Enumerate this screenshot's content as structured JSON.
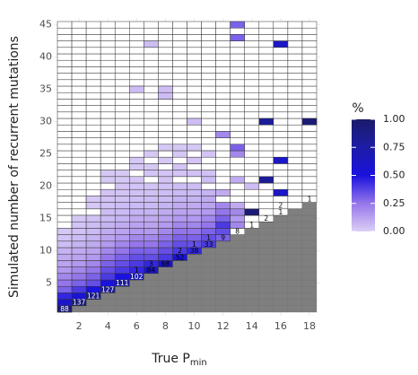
{
  "chart_data": {
    "type": "heatmap",
    "xlabel": "True P",
    "xlabel_sub": "min",
    "ylabel": "Simulated number of recurrent mutations",
    "legend_title": "%",
    "xlim": [
      0.5,
      18.5
    ],
    "ylim": [
      0.5,
      45.5
    ],
    "xticks": [
      2,
      4,
      6,
      8,
      10,
      12,
      14,
      16,
      18
    ],
    "yticks": [
      5,
      10,
      15,
      20,
      25,
      30,
      35,
      40,
      45
    ],
    "clim": [
      0,
      1
    ],
    "cticks": [
      {
        "value": 0,
        "label": "0.00"
      },
      {
        "value": 0.25,
        "label": "0.25"
      },
      {
        "value": 0.5,
        "label": "0.50"
      },
      {
        "value": 0.75,
        "label": "0.75"
      },
      {
        "value": 1,
        "label": "1.00"
      }
    ],
    "colorscale": [
      [
        0,
        "#dccff6"
      ],
      [
        0.25,
        "#9576ea"
      ],
      [
        0.5,
        "#1a12de"
      ],
      [
        0.75,
        "#1c1ca6"
      ],
      [
        1,
        "#1b1b6a"
      ]
    ],
    "impossible_color": "#7f7f7f",
    "cells": [
      [
        1,
        1,
        0.95
      ],
      [
        1,
        2,
        0.6
      ],
      [
        1,
        3,
        0.45
      ],
      [
        1,
        4,
        0.3
      ],
      [
        1,
        5,
        0.25
      ],
      [
        1,
        6,
        0.2
      ],
      [
        1,
        7,
        0.15
      ],
      [
        1,
        8,
        0.12
      ],
      [
        1,
        9,
        0.1
      ],
      [
        1,
        10,
        0.08
      ],
      [
        1,
        11,
        0.05
      ],
      [
        1,
        12,
        0.03
      ],
      [
        1,
        13,
        0.02
      ],
      [
        2,
        2,
        0.95
      ],
      [
        2,
        3,
        0.55
      ],
      [
        2,
        4,
        0.4
      ],
      [
        2,
        5,
        0.3
      ],
      [
        2,
        6,
        0.25
      ],
      [
        2,
        7,
        0.2
      ],
      [
        2,
        8,
        0.15
      ],
      [
        2,
        9,
        0.12
      ],
      [
        2,
        10,
        0.1
      ],
      [
        2,
        11,
        0.08
      ],
      [
        2,
        12,
        0.05
      ],
      [
        2,
        13,
        0.04
      ],
      [
        2,
        14,
        0.03
      ],
      [
        2,
        15,
        0.02
      ],
      [
        3,
        3,
        0.9
      ],
      [
        3,
        4,
        0.5
      ],
      [
        3,
        5,
        0.35
      ],
      [
        3,
        6,
        0.3
      ],
      [
        3,
        7,
        0.25
      ],
      [
        3,
        8,
        0.2
      ],
      [
        3,
        9,
        0.15
      ],
      [
        3,
        10,
        0.12
      ],
      [
        3,
        11,
        0.1
      ],
      [
        3,
        12,
        0.08
      ],
      [
        3,
        13,
        0.06
      ],
      [
        3,
        14,
        0.05
      ],
      [
        3,
        15,
        0.04
      ],
      [
        3,
        17,
        0.02
      ],
      [
        3,
        18,
        0.02
      ],
      [
        4,
        4,
        0.85
      ],
      [
        4,
        5,
        0.5
      ],
      [
        4,
        6,
        0.4
      ],
      [
        4,
        7,
        0.35
      ],
      [
        4,
        8,
        0.3
      ],
      [
        4,
        9,
        0.25
      ],
      [
        4,
        10,
        0.2
      ],
      [
        4,
        11,
        0.15
      ],
      [
        4,
        12,
        0.12
      ],
      [
        4,
        13,
        0.1
      ],
      [
        4,
        14,
        0.08
      ],
      [
        4,
        15,
        0.06
      ],
      [
        4,
        16,
        0.05
      ],
      [
        4,
        17,
        0.04
      ],
      [
        4,
        18,
        0.04
      ],
      [
        4,
        19,
        0.03
      ],
      [
        4,
        21,
        0.02
      ],
      [
        4,
        22,
        0.02
      ],
      [
        5,
        5,
        0.8
      ],
      [
        5,
        6,
        0.5
      ],
      [
        5,
        7,
        0.4
      ],
      [
        5,
        8,
        0.35
      ],
      [
        5,
        9,
        0.3
      ],
      [
        5,
        10,
        0.25
      ],
      [
        5,
        11,
        0.2
      ],
      [
        5,
        12,
        0.15
      ],
      [
        5,
        13,
        0.12
      ],
      [
        5,
        14,
        0.1
      ],
      [
        5,
        15,
        0.08
      ],
      [
        5,
        16,
        0.06
      ],
      [
        5,
        17,
        0.05
      ],
      [
        5,
        18,
        0.04
      ],
      [
        5,
        19,
        0.03
      ],
      [
        5,
        20,
        0.03
      ],
      [
        5,
        21,
        0.02
      ],
      [
        5,
        22,
        0.02
      ],
      [
        6,
        6,
        0.7
      ],
      [
        6,
        7,
        0.45
      ],
      [
        6,
        8,
        0.4
      ],
      [
        6,
        9,
        0.35
      ],
      [
        6,
        10,
        0.3
      ],
      [
        6,
        11,
        0.25
      ],
      [
        6,
        12,
        0.2
      ],
      [
        6,
        13,
        0.15
      ],
      [
        6,
        14,
        0.12
      ],
      [
        6,
        15,
        0.1
      ],
      [
        6,
        16,
        0.08
      ],
      [
        6,
        17,
        0.06
      ],
      [
        6,
        18,
        0.05
      ],
      [
        6,
        19,
        0.04
      ],
      [
        6,
        20,
        0.03
      ],
      [
        6,
        21,
        0.03
      ],
      [
        6,
        23,
        0.02
      ],
      [
        6,
        24,
        0.02
      ],
      [
        6,
        35,
        0.05
      ],
      [
        7,
        7,
        0.6
      ],
      [
        7,
        8,
        0.45
      ],
      [
        7,
        9,
        0.35
      ],
      [
        7,
        10,
        0.3
      ],
      [
        7,
        11,
        0.25
      ],
      [
        7,
        12,
        0.2
      ],
      [
        7,
        13,
        0.15
      ],
      [
        7,
        14,
        0.12
      ],
      [
        7,
        15,
        0.1
      ],
      [
        7,
        16,
        0.08
      ],
      [
        7,
        17,
        0.06
      ],
      [
        7,
        18,
        0.05
      ],
      [
        7,
        19,
        0.04
      ],
      [
        7,
        20,
        0.03
      ],
      [
        7,
        22,
        0.03
      ],
      [
        7,
        23,
        0.02
      ],
      [
        7,
        25,
        0.02
      ],
      [
        7,
        42,
        0.05
      ],
      [
        8,
        8,
        0.55
      ],
      [
        8,
        9,
        0.4
      ],
      [
        8,
        10,
        0.35
      ],
      [
        8,
        11,
        0.3
      ],
      [
        8,
        12,
        0.25
      ],
      [
        8,
        13,
        0.2
      ],
      [
        8,
        14,
        0.15
      ],
      [
        8,
        15,
        0.12
      ],
      [
        8,
        16,
        0.1
      ],
      [
        8,
        17,
        0.08
      ],
      [
        8,
        18,
        0.06
      ],
      [
        8,
        19,
        0.05
      ],
      [
        8,
        20,
        0.04
      ],
      [
        8,
        21,
        0.04
      ],
      [
        8,
        22,
        0.03
      ],
      [
        8,
        24,
        0.02
      ],
      [
        8,
        26,
        0.02
      ],
      [
        8,
        34,
        0.05
      ],
      [
        8,
        35,
        0.05
      ],
      [
        9,
        9,
        0.5
      ],
      [
        9,
        10,
        0.4
      ],
      [
        9,
        11,
        0.35
      ],
      [
        9,
        12,
        0.3
      ],
      [
        9,
        13,
        0.25
      ],
      [
        9,
        14,
        0.2
      ],
      [
        9,
        15,
        0.15
      ],
      [
        9,
        16,
        0.12
      ],
      [
        9,
        17,
        0.1
      ],
      [
        9,
        18,
        0.08
      ],
      [
        9,
        19,
        0.06
      ],
      [
        9,
        20,
        0.05
      ],
      [
        9,
        22,
        0.03
      ],
      [
        9,
        23,
        0.03
      ],
      [
        9,
        25,
        0.02
      ],
      [
        9,
        26,
        0.02
      ],
      [
        10,
        10,
        0.45
      ],
      [
        10,
        11,
        0.35
      ],
      [
        10,
        12,
        0.3
      ],
      [
        10,
        13,
        0.25
      ],
      [
        10,
        14,
        0.2
      ],
      [
        10,
        15,
        0.15
      ],
      [
        10,
        16,
        0.12
      ],
      [
        10,
        17,
        0.1
      ],
      [
        10,
        18,
        0.08
      ],
      [
        10,
        19,
        0.06
      ],
      [
        10,
        20,
        0.05
      ],
      [
        10,
        22,
        0.04
      ],
      [
        10,
        24,
        0.03
      ],
      [
        10,
        26,
        0.02
      ],
      [
        10,
        30,
        0.05
      ],
      [
        11,
        11,
        0.4
      ],
      [
        11,
        12,
        0.35
      ],
      [
        11,
        13,
        0.3
      ],
      [
        11,
        14,
        0.25
      ],
      [
        11,
        15,
        0.2
      ],
      [
        11,
        16,
        0.15
      ],
      [
        11,
        17,
        0.12
      ],
      [
        11,
        18,
        0.1
      ],
      [
        11,
        19,
        0.08
      ],
      [
        11,
        21,
        0.05
      ],
      [
        11,
        22,
        0.04
      ],
      [
        11,
        25,
        0.03
      ],
      [
        12,
        12,
        0.3
      ],
      [
        12,
        13,
        0.35
      ],
      [
        12,
        14,
        0.4
      ],
      [
        12,
        15,
        0.3
      ],
      [
        12,
        16,
        0.25
      ],
      [
        12,
        17,
        0.2
      ],
      [
        12,
        19,
        0.1
      ],
      [
        12,
        28,
        0.2
      ],
      [
        13,
        14,
        0.2
      ],
      [
        13,
        15,
        0.15
      ],
      [
        13,
        16,
        0.2
      ],
      [
        13,
        17,
        0.1
      ],
      [
        13,
        21,
        0.1
      ],
      [
        13,
        25,
        0.2
      ],
      [
        13,
        26,
        0.3
      ],
      [
        13,
        43,
        0.3
      ],
      [
        13,
        45,
        0.3
      ],
      [
        14,
        16,
        0.95
      ],
      [
        14,
        20,
        0.05
      ],
      [
        15,
        21,
        0.8
      ],
      [
        15,
        30,
        0.8
      ],
      [
        16,
        19,
        0.6
      ],
      [
        16,
        24,
        0.6
      ],
      [
        16,
        42,
        0.6
      ],
      [
        18,
        30,
        0.95
      ]
    ],
    "counts": [
      [
        1,
        1,
        88
      ],
      [
        2,
        2,
        137
      ],
      [
        3,
        3,
        121
      ],
      [
        4,
        4,
        127
      ],
      [
        5,
        5,
        111
      ],
      [
        6,
        6,
        102
      ],
      [
        6,
        7,
        1
      ],
      [
        7,
        7,
        84
      ],
      [
        7,
        8,
        3
      ],
      [
        8,
        8,
        68
      ],
      [
        9,
        9,
        52
      ],
      [
        9,
        10,
        2
      ],
      [
        10,
        10,
        38
      ],
      [
        10,
        11,
        1
      ],
      [
        11,
        11,
        33
      ],
      [
        11,
        12,
        1
      ],
      [
        12,
        12,
        9
      ],
      [
        13,
        13,
        8
      ],
      [
        14,
        14,
        1
      ],
      [
        15,
        15,
        2
      ],
      [
        16,
        16,
        1
      ],
      [
        16,
        17,
        2
      ],
      [
        18,
        18,
        1
      ]
    ]
  }
}
